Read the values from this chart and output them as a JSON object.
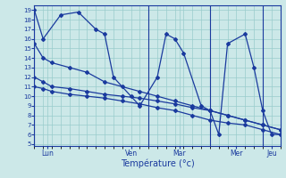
{
  "bg_color": "#cce8e8",
  "grid_color": "#99cccc",
  "line_color": "#1a3a9e",
  "xlabel": "Température (°c)",
  "yticks": [
    5,
    6,
    7,
    8,
    9,
    10,
    11,
    12,
    13,
    14,
    15,
    16,
    17,
    18,
    19
  ],
  "ylim": [
    4.8,
    19.5
  ],
  "xlim": [
    0,
    28
  ],
  "day_vlines": [
    0,
    13,
    20,
    26
  ],
  "day_tick_pos": [
    1.5,
    11,
    16.5,
    23,
    27
  ],
  "day_tick_labels": [
    "Lun",
    "Ven",
    "Mar",
    "Mer",
    "Jeu"
  ],
  "wave_x": [
    0,
    1,
    3,
    5,
    7,
    8,
    9,
    11,
    12,
    14,
    15,
    16,
    17,
    19,
    20,
    21,
    22,
    24,
    25,
    26,
    27,
    28
  ],
  "wave_y": [
    19,
    16,
    18.5,
    18.8,
    17,
    16.5,
    12,
    10,
    9,
    12,
    16.5,
    16,
    14.5,
    9,
    8.5,
    6,
    15.5,
    16.5,
    13,
    8.5,
    6,
    6
  ],
  "line1_x": [
    0,
    1,
    2,
    4,
    6,
    8,
    10,
    12,
    14,
    16,
    18,
    20,
    22,
    24,
    26,
    28
  ],
  "line1_y": [
    15.5,
    14,
    13.5,
    13,
    12.5,
    11.5,
    11,
    10.5,
    10,
    9.5,
    9,
    8.5,
    8,
    7.5,
    7,
    6.5
  ],
  "line2_x": [
    0,
    1,
    2,
    4,
    6,
    8,
    10,
    12,
    14,
    16,
    18,
    20,
    22,
    24,
    26,
    28
  ],
  "line2_y": [
    12,
    11.5,
    11,
    10.8,
    10.5,
    10.2,
    10,
    9.8,
    9.5,
    9.2,
    8.8,
    8.5,
    8.0,
    7.5,
    7.0,
    6.5
  ],
  "line3_x": [
    0,
    1,
    2,
    4,
    6,
    8,
    10,
    12,
    14,
    16,
    18,
    20,
    22,
    24,
    26,
    28
  ],
  "line3_y": [
    11,
    10.8,
    10.5,
    10.2,
    10,
    9.8,
    9.5,
    9.2,
    8.8,
    8.5,
    8.0,
    7.5,
    7.2,
    7.0,
    6.5,
    6.0
  ]
}
